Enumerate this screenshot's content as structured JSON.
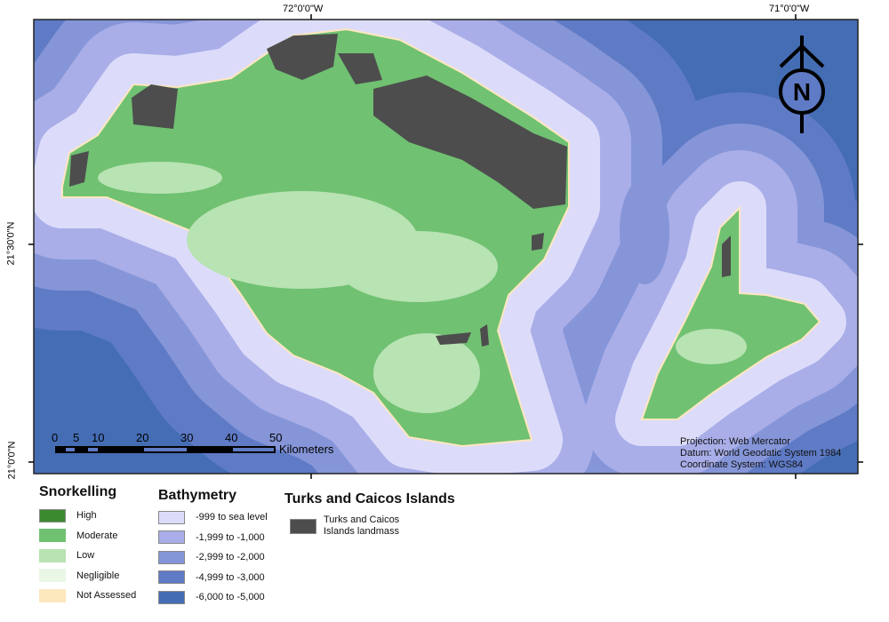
{
  "graticule": {
    "lon_labels": [
      "72°0'0\"W",
      "71°0'0\"W"
    ],
    "lat_labels": [
      "21°30'0\"N",
      "21°0'0\"N"
    ]
  },
  "scale_bar": {
    "ticks": [
      "0",
      "5",
      "10",
      "20",
      "30",
      "40",
      "50"
    ],
    "unit": "Kilometers"
  },
  "north_arrow": {
    "label": "N",
    "icon": "north-arrow-icon"
  },
  "projection_info": [
    "Projection: Web Mercator",
    "Datum: World Geodatic System 1984",
    "Coordinate System: WGS84"
  ],
  "legend": {
    "snorkelling": {
      "title": "Snorkelling",
      "items": [
        {
          "label": "High",
          "color": "#3a8a2e"
        },
        {
          "label": "Moderate",
          "color": "#70c172"
        },
        {
          "label": "Low",
          "color": "#b8e3b2"
        },
        {
          "label": "Negligible",
          "color": "#eaf6e6"
        },
        {
          "label": "Not Assessed",
          "color": "#fde7bd"
        }
      ]
    },
    "bathymetry": {
      "title": "Bathymetry",
      "items": [
        {
          "label": "-999 to sea level",
          "color": "#dcdcfa"
        },
        {
          "label": "-1,999 to -1,000",
          "color": "#a9aee8"
        },
        {
          "label": "-2,999 to -2,000",
          "color": "#8595d8"
        },
        {
          "label": "-4,999 to -3,000",
          "color": "#5f7bc6"
        },
        {
          "label": "-6,000 to -5,000",
          "color": "#456db4"
        }
      ]
    },
    "landmass": {
      "title": "Turks and Caicos Islands",
      "items": [
        {
          "label": "Turks and Caicos Islands landmass",
          "line1": "Turks and Caicos",
          "line2": "Islands landmass",
          "color": "#4d4d4d"
        }
      ]
    }
  }
}
